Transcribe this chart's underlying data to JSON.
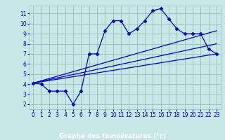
{
  "xlabel": "Graphe des températures (°c)",
  "bg_color": "#c8e8e8",
  "plot_bg_color": "#c8e8e8",
  "line_color": "#0000cc",
  "grid_color": "#99bbbb",
  "bottom_bar_color": "#0000aa",
  "xlim": [
    -0.5,
    23.5
  ],
  "ylim": [
    1.5,
    11.8
  ],
  "xticks": [
    0,
    1,
    2,
    3,
    4,
    5,
    6,
    7,
    8,
    9,
    10,
    11,
    12,
    13,
    14,
    15,
    16,
    17,
    18,
    19,
    20,
    21,
    22,
    23
  ],
  "yticks": [
    2,
    3,
    4,
    5,
    6,
    7,
    8,
    9,
    10,
    11
  ],
  "main_x": [
    0,
    1,
    2,
    3,
    4,
    5,
    6,
    7,
    8,
    9,
    10,
    11,
    12,
    13,
    14,
    15,
    16,
    17,
    18,
    19,
    20,
    21,
    22,
    23
  ],
  "main_y": [
    4.1,
    4.0,
    3.3,
    3.3,
    3.3,
    2.0,
    3.3,
    7.0,
    7.0,
    9.3,
    10.3,
    10.3,
    9.0,
    9.5,
    10.3,
    11.3,
    11.5,
    10.5,
    9.5,
    9.0,
    9.0,
    9.0,
    7.5,
    7.0
  ],
  "trend1_x": [
    0,
    23
  ],
  "trend1_y": [
    4.1,
    9.3
  ],
  "trend2_x": [
    0,
    23
  ],
  "trend2_y": [
    4.1,
    8.0
  ],
  "trend3_x": [
    0,
    23
  ],
  "trend3_y": [
    4.1,
    7.0
  ],
  "marker": "D",
  "markersize": 2.5,
  "linewidth": 0.9,
  "tick_fontsize": 5.5,
  "xlabel_fontsize": 6.5
}
